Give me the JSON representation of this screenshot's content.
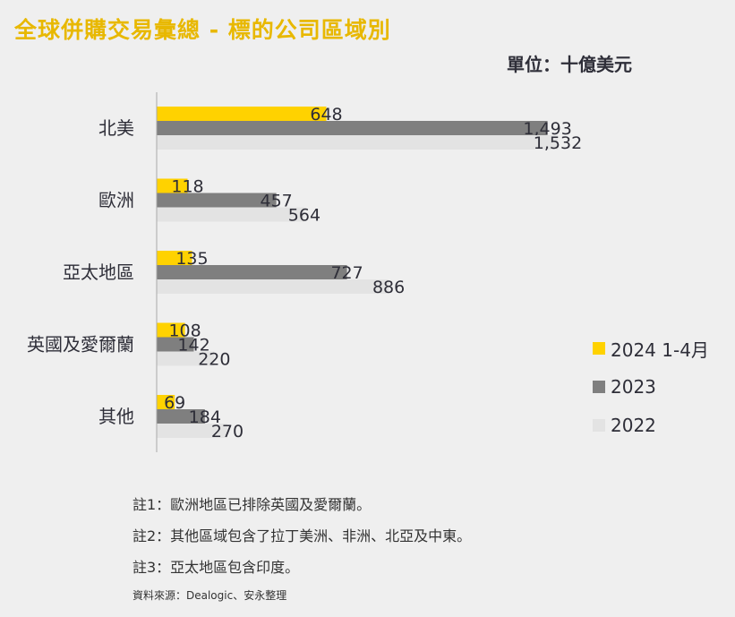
{
  "title": "全球併購交易彙總 - 標的公司區域別",
  "unit": "單位：十億美元",
  "colors": {
    "title": "#e8b800",
    "s2024": "#ffd200",
    "s2023": "#7f7f7f",
    "s2022": "#e3e3e3"
  },
  "chart_data": {
    "type": "bar",
    "orientation": "horizontal",
    "categories": [
      "北美",
      "歐洲",
      "亞太地區",
      "英國及愛爾蘭",
      "其他"
    ],
    "series": [
      {
        "name": "2024 1-4月",
        "values": [
          648,
          118,
          135,
          108,
          69
        ],
        "labels": [
          "648",
          "118",
          "135",
          "108",
          "69"
        ],
        "color": "#ffd200"
      },
      {
        "name": "2023",
        "values": [
          1493,
          457,
          727,
          142,
          184
        ],
        "labels": [
          "1,493",
          "457",
          "727",
          "142",
          "184"
        ],
        "color": "#7f7f7f"
      },
      {
        "name": "2022",
        "values": [
          1532,
          564,
          886,
          220,
          270
        ],
        "labels": [
          "1,532",
          "564",
          "886",
          "220",
          "270"
        ],
        "color": "#e3e3e3"
      }
    ],
    "xlim": [
      0,
      1600
    ],
    "legend_position": "right"
  },
  "notes": [
    "註1：歐洲地區已排除英國及愛爾蘭。",
    "註2：其他區域包含了拉丁美洲、非洲、北亞及中東。",
    "註3：亞太地區包含印度。"
  ],
  "source": "資料來源：Dealogic、安永整理"
}
